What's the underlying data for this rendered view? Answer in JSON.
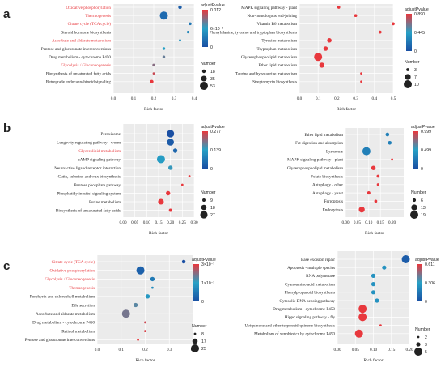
{
  "highlight_color": "#e8383d",
  "normal_color": "#222222",
  "sections": [
    {
      "label": "a"
    },
    {
      "label": "b"
    },
    {
      "label": "c"
    }
  ],
  "chart_data": [
    {
      "id": "a-left",
      "type": "scatter",
      "xlabel": "Rich factor",
      "xlim": [
        0,
        0.4
      ],
      "xticks": [
        "0.0",
        "0.1",
        "0.2",
        "0.3",
        "0.4"
      ],
      "terms": [
        {
          "name": "Oxidative phosphorylation",
          "x": 0.33,
          "size": 18,
          "padj": 0.001,
          "highlight": true
        },
        {
          "name": "Thermogenesis",
          "x": 0.25,
          "size": 53,
          "padj": 0.002,
          "highlight": true
        },
        {
          "name": "Citrate cycle (TCA cycle)",
          "x": 0.38,
          "size": 12,
          "padj": 0.003,
          "highlight": true
        },
        {
          "name": "Steroid hormone biosynthesis",
          "x": 0.37,
          "size": 10,
          "padj": 0.004,
          "highlight": false
        },
        {
          "name": "Ascorbate and aldarate metabolism",
          "x": 0.33,
          "size": 8,
          "padj": 0.005,
          "highlight": true
        },
        {
          "name": "Pentose and glucuronate interconversions",
          "x": 0.25,
          "size": 12,
          "padj": 0.006,
          "highlight": false
        },
        {
          "name": "Drug metabolism - cytochrome P450",
          "x": 0.25,
          "size": 12,
          "padj": 0.008,
          "highlight": false
        },
        {
          "name": "Glycolysis / Gluconeogenesis",
          "x": 0.2,
          "size": 12,
          "padj": 0.009,
          "highlight": true
        },
        {
          "name": "Biosynthesis of unsaturated fatty acids",
          "x": 0.2,
          "size": 8,
          "padj": 0.011,
          "highlight": false
        },
        {
          "name": "Retrograde endocannabinoid signaling",
          "x": 0.19,
          "size": 18,
          "padj": 0.012,
          "highlight": false
        }
      ],
      "legend": {
        "title": "adjustPvalue",
        "ticks": [
          "0.012",
          "6×10⁻³",
          "0"
        ],
        "size_title": "Number",
        "sizes": [
          18,
          35,
          53
        ]
      }
    },
    {
      "id": "a-right",
      "type": "scatter",
      "xlabel": "Rich factor",
      "xlim": [
        0,
        0.5
      ],
      "xticks": [
        "0.0",
        "0.1",
        "0.2",
        "0.3",
        "0.4",
        "0.5"
      ],
      "terms": [
        {
          "name": "MAPK signaling pathway - plant",
          "x": 0.21,
          "size": 3,
          "padj": 0.89,
          "highlight": false
        },
        {
          "name": "Non-homologous end-joining",
          "x": 0.3,
          "size": 3,
          "padj": 0.89,
          "highlight": false
        },
        {
          "name": "Vitamin B6 metabolism",
          "x": 0.5,
          "size": 3,
          "padj": 0.89,
          "highlight": false
        },
        {
          "name": "Phenylalanine, tyrosine and tryptophan biosynthesis",
          "x": 0.43,
          "size": 3,
          "padj": 0.89,
          "highlight": false
        },
        {
          "name": "Tyrosine metabolism",
          "x": 0.16,
          "size": 5,
          "padj": 0.89,
          "highlight": false
        },
        {
          "name": "Tryptophan metabolism",
          "x": 0.14,
          "size": 5,
          "padj": 0.89,
          "highlight": false
        },
        {
          "name": "Glycerophospholipid metabolism",
          "x": 0.1,
          "size": 10,
          "padj": 0.89,
          "highlight": false
        },
        {
          "name": "Ether lipid metabolism",
          "x": 0.12,
          "size": 6,
          "padj": 0.89,
          "highlight": false
        },
        {
          "name": "Taurine and hypotaurine metabolism",
          "x": 0.33,
          "size": 2,
          "padj": 0.89,
          "highlight": false
        },
        {
          "name": "Streptomycin biosynthesis",
          "x": 0.33,
          "size": 2,
          "padj": 0.89,
          "highlight": false
        }
      ],
      "legend": {
        "title": "adjustPvalue",
        "ticks": [
          "0.890",
          "0.445",
          "0"
        ],
        "size_title": "Number",
        "sizes": [
          3,
          7,
          10
        ]
      }
    },
    {
      "id": "b-left",
      "type": "scatter",
      "xlabel": "Rich factor",
      "xlim": [
        0,
        0.3
      ],
      "xticks": [
        "0.00",
        "0.05",
        "0.10",
        "0.15",
        "0.20",
        "0.25",
        "0.30"
      ],
      "terms": [
        {
          "name": "Peroxisome",
          "x": 0.2,
          "size": 27,
          "padj": 0.0,
          "highlight": false
        },
        {
          "name": "Longevity regulating pathway - worm",
          "x": 0.2,
          "size": 25,
          "padj": 0.02,
          "highlight": false
        },
        {
          "name": "Glycerolipid metabolism",
          "x": 0.22,
          "size": 14,
          "padj": 0.04,
          "highlight": true
        },
        {
          "name": "cAMP signaling pathway",
          "x": 0.16,
          "size": 30,
          "padj": 0.13,
          "highlight": false
        },
        {
          "name": "Neuroactive ligand-receptor interaction",
          "x": 0.2,
          "size": 14,
          "padj": 0.15,
          "highlight": false
        },
        {
          "name": "Cutin, suberine and wax biosynthesis",
          "x": 0.28,
          "size": 5,
          "padj": 0.277,
          "highlight": false
        },
        {
          "name": "Pentose phosphate pathway",
          "x": 0.25,
          "size": 5,
          "padj": 0.277,
          "highlight": false
        },
        {
          "name": "Phosphatidylinositol signaling system",
          "x": 0.19,
          "size": 14,
          "padj": 0.277,
          "highlight": false
        },
        {
          "name": "Purine metabolism",
          "x": 0.16,
          "size": 20,
          "padj": 0.277,
          "highlight": false
        },
        {
          "name": "Biosynthesis of unsaturated fatty acids",
          "x": 0.2,
          "size": 9,
          "padj": 0.277,
          "highlight": false
        }
      ],
      "legend": {
        "title": "adjustPvalue",
        "ticks": [
          "0.277",
          "0.139",
          "0"
        ],
        "size_title": "Number",
        "sizes": [
          9,
          18,
          27
        ]
      }
    },
    {
      "id": "b-right",
      "type": "scatter",
      "xlabel": "Rich factor",
      "xlim": [
        0,
        0.25
      ],
      "xticks": [
        "0.00",
        "0.05",
        "0.10",
        "0.15",
        "0.20"
      ],
      "terms": [
        {
          "name": "Ether lipid metabolism",
          "x": 0.18,
          "size": 7,
          "padj": 0.3,
          "highlight": false
        },
        {
          "name": "Fat digestion and absorption",
          "x": 0.19,
          "size": 7,
          "padj": 0.3,
          "highlight": false
        },
        {
          "name": "Lysosome",
          "x": 0.09,
          "size": 19,
          "padj": 0.3,
          "highlight": false
        },
        {
          "name": "MAPK signaling pathway - plant",
          "x": 0.2,
          "size": 3,
          "padj": 0.999,
          "highlight": false
        },
        {
          "name": "Glycerophospholipid metabolism",
          "x": 0.12,
          "size": 9,
          "padj": 0.999,
          "highlight": false
        },
        {
          "name": "Folate biosynthesis",
          "x": 0.14,
          "size": 5,
          "padj": 0.999,
          "highlight": false
        },
        {
          "name": "Autophagy - other",
          "x": 0.14,
          "size": 4,
          "padj": 0.999,
          "highlight": false
        },
        {
          "name": "Autophagy - yeast",
          "x": 0.1,
          "size": 6,
          "padj": 0.999,
          "highlight": false
        },
        {
          "name": "Ferroptosis",
          "x": 0.13,
          "size": 5,
          "padj": 0.999,
          "highlight": false
        },
        {
          "name": "Endocytosis",
          "x": 0.07,
          "size": 13,
          "padj": 0.999,
          "highlight": false
        }
      ],
      "legend": {
        "title": "adjustPvalue",
        "ticks": [
          "0.999",
          "0.499",
          "0"
        ],
        "size_title": "Number",
        "sizes": [
          6,
          13,
          19
        ]
      }
    },
    {
      "id": "c-left",
      "type": "scatter",
      "xlabel": "Rich factor",
      "xlim": [
        0,
        0.4
      ],
      "xticks": [
        "0.0",
        "0.1",
        "0.2",
        "0.3",
        "0.4"
      ],
      "terms": [
        {
          "name": "Citrate cycle (TCA cycle)",
          "x": 0.36,
          "size": 12,
          "padj": 0.0,
          "highlight": true
        },
        {
          "name": "Oxidative phosphorylation",
          "x": 0.18,
          "size": 25,
          "padj": 0.0003,
          "highlight": true
        },
        {
          "name": "Glycolysis / Gluconeogenesis",
          "x": 0.23,
          "size": 14,
          "padj": 0.0007,
          "highlight": true
        },
        {
          "name": "Thermogenesis",
          "x": 0.23,
          "size": 8,
          "padj": 0.001,
          "highlight": true
        },
        {
          "name": "Porphyrin and chlorophyll metabolism",
          "x": 0.21,
          "size": 14,
          "padj": 0.0012,
          "highlight": false
        },
        {
          "name": "Bile secretion",
          "x": 0.16,
          "size": 14,
          "padj": 0.0017,
          "highlight": false
        },
        {
          "name": "Ascorbate and aldarate metabolism",
          "x": 0.12,
          "size": 25,
          "padj": 0.0019,
          "highlight": false
        },
        {
          "name": "Drug metabolism - cytochrome P450",
          "x": 0.2,
          "size": 8,
          "padj": 0.0025,
          "highlight": false
        },
        {
          "name": "Retinol metabolism",
          "x": 0.2,
          "size": 8,
          "padj": 0.0026,
          "highlight": false
        },
        {
          "name": "Pentose and glucuronate interconversions",
          "x": 0.17,
          "size": 8,
          "padj": 0.0027,
          "highlight": false
        }
      ],
      "legend": {
        "title": "adjustPvalue",
        "ticks": [
          "3×10⁻³",
          "1×10⁻³",
          "0"
        ],
        "size_title": "Number",
        "sizes": [
          8,
          17,
          25
        ]
      }
    },
    {
      "id": "c-right",
      "type": "scatter",
      "xlabel": "Rich factor",
      "xlim": [
        0,
        0.2
      ],
      "xticks": [
        "0.00",
        "0.05",
        "0.10",
        "0.15",
        "0.20"
      ],
      "terms": [
        {
          "name": "Base excision repair",
          "x": 0.19,
          "size": 5,
          "padj": 0.05,
          "highlight": false
        },
        {
          "name": "Apoptosis - multiple species",
          "x": 0.13,
          "size": 3,
          "padj": 0.25,
          "highlight": false
        },
        {
          "name": "RNA polymerase",
          "x": 0.1,
          "size": 3,
          "padj": 0.25,
          "highlight": false
        },
        {
          "name": "Cyanoamino acid metabolism",
          "x": 0.1,
          "size": 3,
          "padj": 0.25,
          "highlight": false
        },
        {
          "name": "Phenylpropanoid biosynthesis",
          "x": 0.1,
          "size": 3,
          "padj": 0.25,
          "highlight": false
        },
        {
          "name": "Cytosolic DNA-sensing pathway",
          "x": 0.11,
          "size": 3,
          "padj": 0.25,
          "highlight": false
        },
        {
          "name": "Drug metabolism - cytochrome P450",
          "x": 0.07,
          "size": 5,
          "padj": 0.611,
          "highlight": false
        },
        {
          "name": "Hippo signaling pathway - fly",
          "x": 0.07,
          "size": 5,
          "padj": 0.611,
          "highlight": false
        },
        {
          "name": "Ubiquinone and other terpenoid-quinone biosynthesis",
          "x": 0.12,
          "size": 2,
          "padj": 0.611,
          "highlight": false
        },
        {
          "name": "Metabolism of xenobiotics by cytochrome P450",
          "x": 0.06,
          "size": 5,
          "padj": 0.611,
          "highlight": false
        }
      ],
      "legend": {
        "title": "adjustPvalue",
        "ticks": [
          "0.611",
          "0.306",
          "0"
        ],
        "size_title": "Number",
        "sizes": [
          2,
          3,
          5
        ]
      }
    }
  ]
}
